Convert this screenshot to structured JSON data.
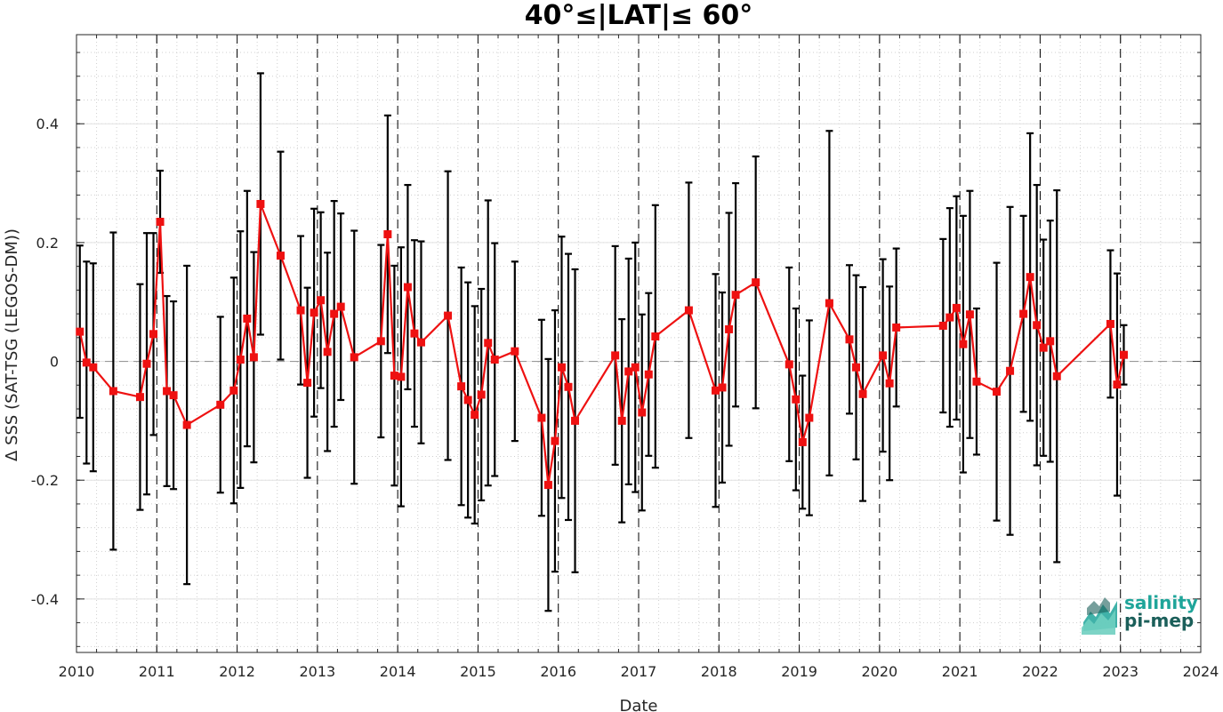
{
  "chart_data": {
    "type": "line",
    "title": "40°≤|LAT|≤ 60°",
    "xlabel": "Date",
    "ylabel": "Δ SSS (SAT-TSG (LEGOS-DM))",
    "xlim": [
      2010,
      2024
    ],
    "ylim": [
      -0.49,
      0.55
    ],
    "xticks": [
      "2010",
      "2011",
      "2012",
      "2013",
      "2014",
      "2015",
      "2016",
      "2017",
      "2018",
      "2019",
      "2020",
      "2021",
      "2022",
      "2023",
      "2024"
    ],
    "yticks": [
      "-0.4",
      "-0.2",
      "0",
      "0.2",
      "0.4"
    ],
    "ytick_values": [
      -0.4,
      -0.2,
      0,
      0.2,
      0.4
    ],
    "grid": true,
    "zero_line": 0,
    "year_markers": [
      2011,
      2012,
      2013,
      2014,
      2015,
      2016,
      2017,
      2018,
      2019,
      2020,
      2021,
      2022,
      2023
    ],
    "colors": {
      "series": "#ee1111",
      "error_bars": "#000000",
      "year_markers": "#000000",
      "zero_line": "#999999"
    },
    "series": [
      {
        "x": [
          "2010-01",
          "2010-02",
          "2010-03",
          "2010-06",
          "2010-10",
          "2010-11",
          "2010-12",
          "2011-01",
          "2011-02",
          "2011-03",
          "2011-05",
          "2011-10",
          "2011-12",
          "2012-01",
          "2012-02",
          "2012-03",
          "2012-04",
          "2012-07",
          "2012-10",
          "2012-11",
          "2012-12",
          "2013-01",
          "2013-02",
          "2013-03",
          "2013-04",
          "2013-06",
          "2013-10",
          "2013-11",
          "2013-12",
          "2014-01",
          "2014-02",
          "2014-03",
          "2014-04",
          "2014-08",
          "2014-10",
          "2014-11",
          "2014-12",
          "2015-01",
          "2015-02",
          "2015-03",
          "2015-06",
          "2015-10",
          "2015-11",
          "2015-12",
          "2016-01",
          "2016-02",
          "2016-03",
          "2016-09",
          "2016-10",
          "2016-11",
          "2016-12",
          "2017-01",
          "2017-02",
          "2017-03",
          "2017-08",
          "2017-12",
          "2018-01",
          "2018-02",
          "2018-03",
          "2018-06",
          "2018-11",
          "2018-12",
          "2019-01",
          "2019-02",
          "2019-05",
          "2019-08",
          "2019-09",
          "2019-10",
          "2020-01",
          "2020-02",
          "2020-03",
          "2020-10",
          "2020-11",
          "2020-12",
          "2021-01",
          "2021-02",
          "2021-03",
          "2021-06",
          "2021-08",
          "2021-10",
          "2021-11",
          "2021-12",
          "2022-01",
          "2022-02",
          "2022-03",
          "2022-11",
          "2022-12",
          "2023-01"
        ],
        "y": [
          0.05,
          -0.002,
          -0.01,
          -0.05,
          -0.06,
          -0.004,
          0.046,
          0.235,
          -0.05,
          -0.057,
          -0.107,
          -0.073,
          -0.049,
          0.003,
          0.072,
          0.007,
          0.265,
          0.178,
          0.086,
          -0.036,
          0.082,
          0.103,
          0.016,
          0.08,
          0.092,
          0.007,
          0.034,
          0.214,
          -0.024,
          -0.026,
          0.125,
          0.047,
          0.032,
          0.077,
          -0.042,
          -0.065,
          -0.09,
          -0.056,
          0.031,
          0.003,
          0.017,
          -0.095,
          -0.208,
          -0.134,
          -0.01,
          -0.043,
          -0.1,
          0.01,
          -0.1,
          -0.017,
          -0.01,
          -0.086,
          -0.022,
          0.042,
          0.086,
          -0.049,
          -0.044,
          0.054,
          0.112,
          0.133,
          -0.005,
          -0.064,
          -0.136,
          -0.095,
          0.098,
          0.037,
          -0.01,
          -0.055,
          0.01,
          -0.037,
          0.057,
          0.06,
          0.074,
          0.09,
          0.029,
          0.079,
          -0.034,
          -0.051,
          -0.016,
          0.08,
          0.142,
          0.061,
          0.023,
          0.034,
          -0.025,
          0.063,
          -0.039,
          0.011
        ],
        "err": [
          0.145,
          0.17,
          0.175,
          0.267,
          0.19,
          0.22,
          0.17,
          0.086,
          0.16,
          0.158,
          0.268,
          0.148,
          0.19,
          0.216,
          0.215,
          0.177,
          0.22,
          0.175,
          0.125,
          0.16,
          0.175,
          0.148,
          0.167,
          0.19,
          0.157,
          0.213,
          0.162,
          0.2,
          0.185,
          0.218,
          0.172,
          0.157,
          0.17,
          0.243,
          0.2,
          0.198,
          0.183,
          0.178,
          0.24,
          0.196,
          0.151,
          0.165,
          0.212,
          0.22,
          0.22,
          0.224,
          0.255,
          0.184,
          0.171,
          0.19,
          0.21,
          0.165,
          0.137,
          0.221,
          0.215,
          0.196,
          0.16,
          0.196,
          0.188,
          0.212,
          0.163,
          0.153,
          0.112,
          0.164,
          0.29,
          0.125,
          0.155,
          0.18,
          0.162,
          0.163,
          0.133,
          0.146,
          0.184,
          0.188,
          0.216,
          0.208,
          0.123,
          0.217,
          0.276,
          0.165,
          0.242,
          0.236,
          0.182,
          0.203,
          0.313,
          0.124,
          0.187,
          0.05
        ]
      }
    ]
  },
  "logo": {
    "line1": "salinity",
    "line2": "pi-mep"
  }
}
